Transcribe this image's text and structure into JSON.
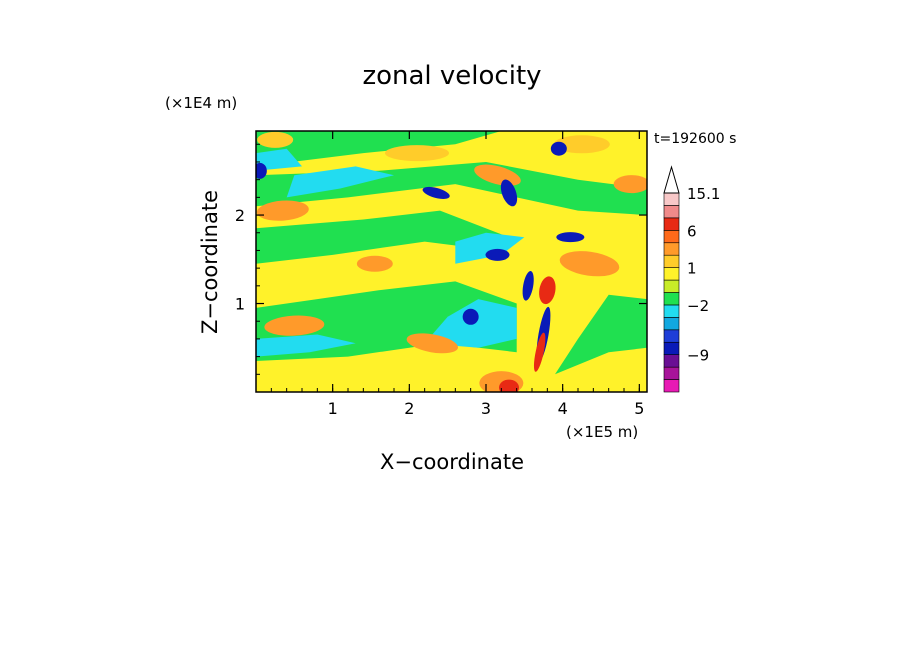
{
  "chart_data": {
    "type": "heatmap",
    "title": "zonal velocity",
    "xlabel": "X−coordinate",
    "ylabel": "Z−coordinate",
    "x_unit": "(×1E5 m)",
    "y_unit": "(×1E4 m)",
    "time_label": "t=192600 s",
    "xlim": [
      0,
      5.1
    ],
    "ylim": [
      0,
      2.95
    ],
    "x_ticks": [
      1,
      2,
      3,
      4,
      5
    ],
    "y_ticks": [
      1,
      2
    ],
    "grid": false,
    "colorbar": {
      "levels": [
        {
          "color": "#e81ab4"
        },
        {
          "color": "#a8149a"
        },
        {
          "color": "#6a0f94"
        },
        {
          "color": "#0a1ab8"
        },
        {
          "color": "#1e3ed8"
        },
        {
          "color": "#12a8e0"
        },
        {
          "color": "#22dcf0"
        },
        {
          "color": "#20e050"
        },
        {
          "color": "#c8ec28"
        },
        {
          "color": "#fff22a"
        },
        {
          "color": "#ffcc2a"
        },
        {
          "color": "#ff9a2a"
        },
        {
          "color": "#ff6a1a"
        },
        {
          "color": "#e82a14"
        },
        {
          "color": "#f08a8a"
        },
        {
          "color": "#f8c8c8"
        }
      ],
      "tick_labels": [
        "15.1",
        "6",
        "1",
        "−2",
        "−9"
      ],
      "tick_level_index": [
        16,
        13,
        10,
        7,
        3
      ]
    },
    "bands": [
      {
        "name": "background",
        "color": "#fff22a"
      },
      {
        "name": "green",
        "color": "#20e050"
      },
      {
        "name": "cyan",
        "color": "#22dcf0"
      },
      {
        "name": "orange",
        "color": "#ff9a2a"
      },
      {
        "name": "light-orange",
        "color": "#ffcc2a"
      },
      {
        "name": "blue",
        "color": "#0a1ab8"
      },
      {
        "name": "red",
        "color": "#e82a14"
      }
    ]
  }
}
